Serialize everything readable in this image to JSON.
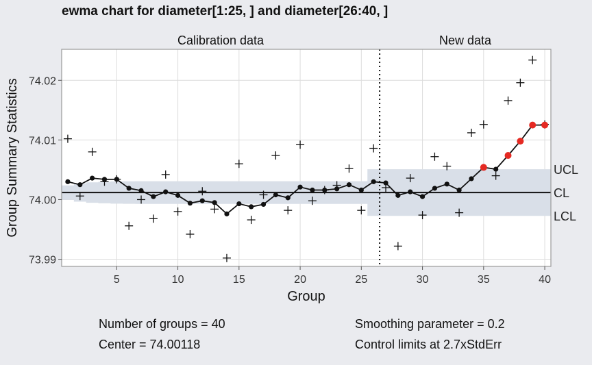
{
  "title": "ewma chart for diameter[1:25, ] and diameter[26:40, ]",
  "chart_data": {
    "type": "line",
    "title": "ewma chart for diameter[1:25, ] and diameter[26:40, ]",
    "xlabel": "Group",
    "ylabel": "Group Summary Statistics",
    "xlim": [
      0.5,
      40.5
    ],
    "ylim": [
      73.9888,
      74.0252
    ],
    "x_ticks": [
      5,
      10,
      15,
      20,
      25,
      30,
      35,
      40
    ],
    "y_ticks": [
      73.99,
      74.0,
      74.01,
      74.02
    ],
    "y_tick_labels": [
      "73.99",
      "74.00",
      "74.01",
      "74.02"
    ],
    "grid": true,
    "sections": [
      {
        "label": "Calibration data",
        "x_range": [
          1,
          25
        ]
      },
      {
        "label": "New data",
        "x_range": [
          26,
          40
        ]
      }
    ],
    "separator_x": 26.5,
    "center": 74.00118,
    "line_labels": {
      "ucl": "UCL",
      "cl": "CL",
      "lcl": "LCL"
    },
    "band_halfwidth": [
      0.0012,
      0.00153,
      0.00171,
      0.0018,
      0.00186,
      0.00189,
      0.0019,
      0.00391
    ],
    "series": [
      {
        "name": "group summary statistics",
        "marker": "plus",
        "x": [
          1,
          2,
          3,
          4,
          5,
          6,
          7,
          8,
          9,
          10,
          11,
          12,
          13,
          14,
          15,
          16,
          17,
          18,
          19,
          20,
          21,
          22,
          23,
          24,
          25,
          26,
          27,
          28,
          29,
          30,
          31,
          32,
          33,
          34,
          35,
          36,
          37,
          38,
          39,
          40
        ],
        "values": [
          74.0102,
          74.0006,
          74.008,
          74.003,
          74.0034,
          73.9956,
          74.0,
          73.9968,
          74.0042,
          73.998,
          73.9942,
          74.0014,
          73.9984,
          73.9902,
          74.006,
          73.9966,
          74.0008,
          74.0074,
          73.9982,
          74.0092,
          73.9998,
          74.0016,
          74.0024,
          74.0052,
          73.9982,
          74.0086,
          74.002,
          73.9922,
          74.0036,
          73.9974,
          74.0072,
          74.0056,
          73.9978,
          74.0112,
          74.0126,
          74.004,
          74.0166,
          74.0196,
          74.0234,
          74.0126
        ]
      },
      {
        "name": "ewma",
        "marker": "dot",
        "x": [
          1,
          2,
          3,
          4,
          5,
          6,
          7,
          8,
          9,
          10,
          11,
          12,
          13,
          14,
          15,
          16,
          17,
          18,
          19,
          20,
          21,
          22,
          23,
          24,
          25,
          26,
          27,
          28,
          29,
          30,
          31,
          32,
          33,
          34,
          35,
          36,
          37,
          38,
          39,
          40
        ],
        "values": [
          74.003,
          74.0025,
          74.0036,
          74.0034,
          74.0034,
          74.0019,
          74.0015,
          74.0005,
          74.0013,
          74.0007,
          73.9994,
          73.9998,
          73.9995,
          73.9976,
          73.9993,
          73.9988,
          73.9992,
          74.0008,
          74.0003,
          74.0021,
          74.0016,
          74.0016,
          74.0018,
          74.0025,
          74.0016,
          74.003,
          74.0028,
          74.0007,
          74.0013,
          74.0005,
          74.0019,
          74.0026,
          74.0016,
          74.0035,
          74.0054,
          74.0051,
          74.0074,
          74.0098,
          74.0125,
          74.0125
        ],
        "out_of_control_x": [
          35,
          37,
          38,
          39,
          40
        ]
      }
    ],
    "colors": {
      "panel": "#ffffff",
      "band": "#d9dfe8",
      "line": "#111111",
      "violation": "#e52a23",
      "grid": "#dcdcdc",
      "background": "#eaebef"
    }
  },
  "stats": {
    "groups": "Number of groups = 40",
    "center": "Center = 74.00118",
    "smoothing": "Smoothing parameter = 0.2",
    "limits": "Control limits at 2.7xStdErr"
  }
}
